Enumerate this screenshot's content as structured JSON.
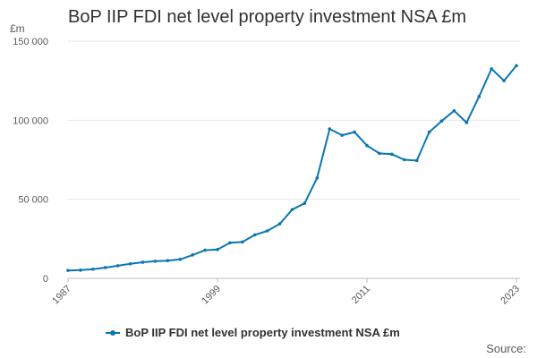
{
  "chart_data": {
    "type": "line",
    "title": "BoP IIP FDI net level property investment NSA £m",
    "unit_label": "£m",
    "xlabel": "",
    "ylabel": "£m",
    "ylim": [
      0,
      150000
    ],
    "y_ticks": [
      0,
      50000,
      100000,
      150000
    ],
    "y_tick_labels": [
      "0",
      "50 000",
      "100 000",
      "150 000"
    ],
    "x_ticks": [
      1987,
      1999,
      2011,
      2023
    ],
    "x_tick_labels": [
      "1987",
      "1999",
      "2011",
      "2023"
    ],
    "xlim": [
      1987,
      2023
    ],
    "legend_position": "bottom",
    "series": [
      {
        "name": "BoP IIP FDI net level property investment NSA £m",
        "color": "#0b76b4",
        "x": [
          1987,
          1988,
          1989,
          1990,
          1991,
          1992,
          1993,
          1994,
          1995,
          1996,
          1997,
          1998,
          1999,
          2000,
          2001,
          2002,
          2003,
          2004,
          2005,
          2006,
          2007,
          2008,
          2009,
          2010,
          2011,
          2012,
          2013,
          2014,
          2015,
          2016,
          2017,
          2018,
          2019,
          2020,
          2021,
          2022,
          2023
        ],
        "values": [
          5000,
          5200,
          5800,
          6800,
          8000,
          9200,
          10200,
          10800,
          11200,
          12000,
          14800,
          17800,
          18200,
          22500,
          23000,
          27500,
          30000,
          34500,
          43500,
          47500,
          63500,
          94500,
          90500,
          92500,
          84000,
          79000,
          78500,
          75000,
          74500,
          92500,
          99500,
          106000,
          98500,
          115000,
          132500,
          125000,
          134500
        ]
      }
    ]
  },
  "legend": {
    "label": "BoP IIP FDI net level property investment NSA £m"
  },
  "footer": {
    "source_label": "Source:"
  }
}
